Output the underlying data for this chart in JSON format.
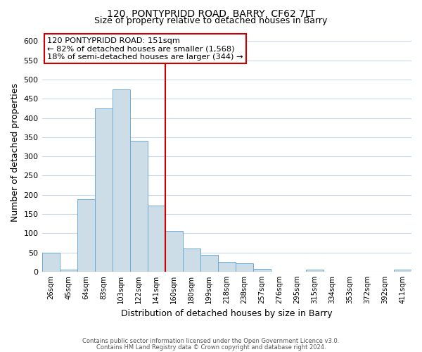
{
  "title_line1": "120, PONTYPRIDD ROAD, BARRY, CF62 7LT",
  "title_line2": "Size of property relative to detached houses in Barry",
  "xlabel": "Distribution of detached houses by size in Barry",
  "ylabel": "Number of detached properties",
  "bar_labels": [
    "26sqm",
    "45sqm",
    "64sqm",
    "83sqm",
    "103sqm",
    "122sqm",
    "141sqm",
    "160sqm",
    "180sqm",
    "199sqm",
    "218sqm",
    "238sqm",
    "257sqm",
    "276sqm",
    "295sqm",
    "315sqm",
    "334sqm",
    "353sqm",
    "372sqm",
    "392sqm",
    "411sqm"
  ],
  "bar_values": [
    50,
    5,
    188,
    425,
    475,
    340,
    172,
    107,
    60,
    44,
    25,
    22,
    8,
    0,
    0,
    5,
    0,
    0,
    0,
    0,
    5
  ],
  "bar_color": "#ccdde8",
  "bar_edge_color": "#6aaad4",
  "vline_x_index": 7,
  "vline_color": "#cc0000",
  "ylim": [
    0,
    620
  ],
  "yticks": [
    0,
    50,
    100,
    150,
    200,
    250,
    300,
    350,
    400,
    450,
    500,
    550,
    600
  ],
  "annotation_title": "120 PONTYPRIDD ROAD: 151sqm",
  "annotation_line1": "← 82% of detached houses are smaller (1,568)",
  "annotation_line2": "18% of semi-detached houses are larger (344) →",
  "annotation_box_color": "#ffffff",
  "annotation_box_edge": "#cc0000",
  "footer_line1": "Contains HM Land Registry data © Crown copyright and database right 2024.",
  "footer_line2": "Contains public sector information licensed under the Open Government Licence v3.0.",
  "background_color": "#ffffff",
  "grid_color": "#c8d8e8",
  "fig_width": 6.0,
  "fig_height": 5.0
}
